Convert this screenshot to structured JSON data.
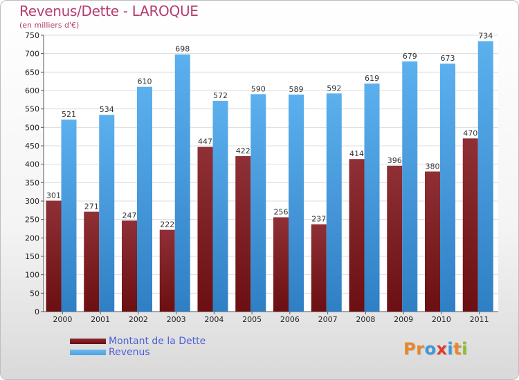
{
  "title": "Revenus/Dette - LAROQUE",
  "subtitle": "(en milliers d'€)",
  "logo": "Proxiti",
  "colors": {
    "dette": "#6b0f12",
    "revenus": "#4aa3e6",
    "title": "#b43c6e",
    "legend_text": "#4a5fd8"
  },
  "chart_data": {
    "type": "bar",
    "categories": [
      "2000",
      "2001",
      "2002",
      "2003",
      "2004",
      "2005",
      "2006",
      "2007",
      "2008",
      "2009",
      "2010",
      "2011"
    ],
    "series": [
      {
        "name": "Montant de la Dette",
        "values": [
          301,
          271,
          247,
          222,
          447,
          422,
          256,
          237,
          414,
          396,
          380,
          470
        ]
      },
      {
        "name": "Revenus",
        "values": [
          521,
          534,
          610,
          698,
          572,
          590,
          589,
          592,
          619,
          679,
          673,
          734
        ]
      }
    ],
    "title": "Revenus/Dette - LAROQUE",
    "subtitle": "(en milliers d'€)",
    "ylim": [
      0,
      750
    ],
    "yticks": [
      0,
      50,
      100,
      150,
      200,
      250,
      300,
      350,
      400,
      450,
      500,
      550,
      600,
      650,
      700,
      750
    ],
    "grid": true,
    "legend": "bottom-left"
  }
}
